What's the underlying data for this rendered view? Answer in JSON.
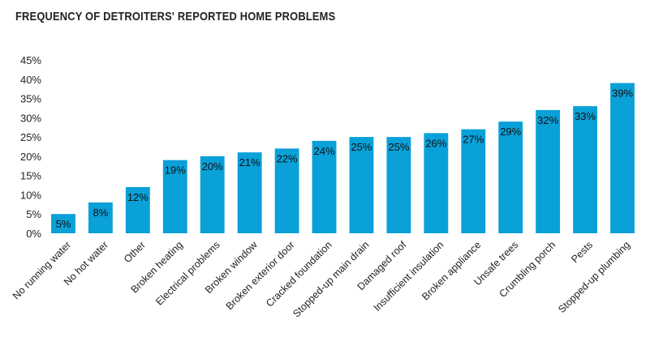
{
  "chart_data": {
    "type": "bar",
    "title": "FREQUENCY OF DETROITERS' REPORTED HOME PROBLEMS",
    "xlabel": "",
    "ylabel": "",
    "ylim": [
      0,
      45
    ],
    "y_ticks": [
      "0%",
      "5%",
      "10%",
      "15%",
      "20%",
      "25%",
      "30%",
      "35%",
      "40%",
      "45%"
    ],
    "grid": false,
    "bar_color": "#0aa0d8",
    "categories": [
      "No running water",
      "No hot water",
      "Other",
      "Broken heating",
      "Electrical problems",
      "Broken window",
      "Broken exterior door",
      "Cracked foundation",
      "Stopped-up main drain",
      "Damaged roof",
      "Insufficient insulation",
      "Broken appliance",
      "Unsafe trees",
      "Crumbling porch",
      "Pests",
      "Stopped-up plumbing"
    ],
    "values": [
      5,
      8,
      12,
      19,
      20,
      21,
      22,
      24,
      25,
      25,
      26,
      27,
      29,
      32,
      33,
      39
    ],
    "data_labels": [
      "5%",
      "8%",
      "12%",
      "19%",
      "20%",
      "21%",
      "22%",
      "24%",
      "25%",
      "25%",
      "26%",
      "27%",
      "29%",
      "32%",
      "33%",
      "39%"
    ]
  }
}
